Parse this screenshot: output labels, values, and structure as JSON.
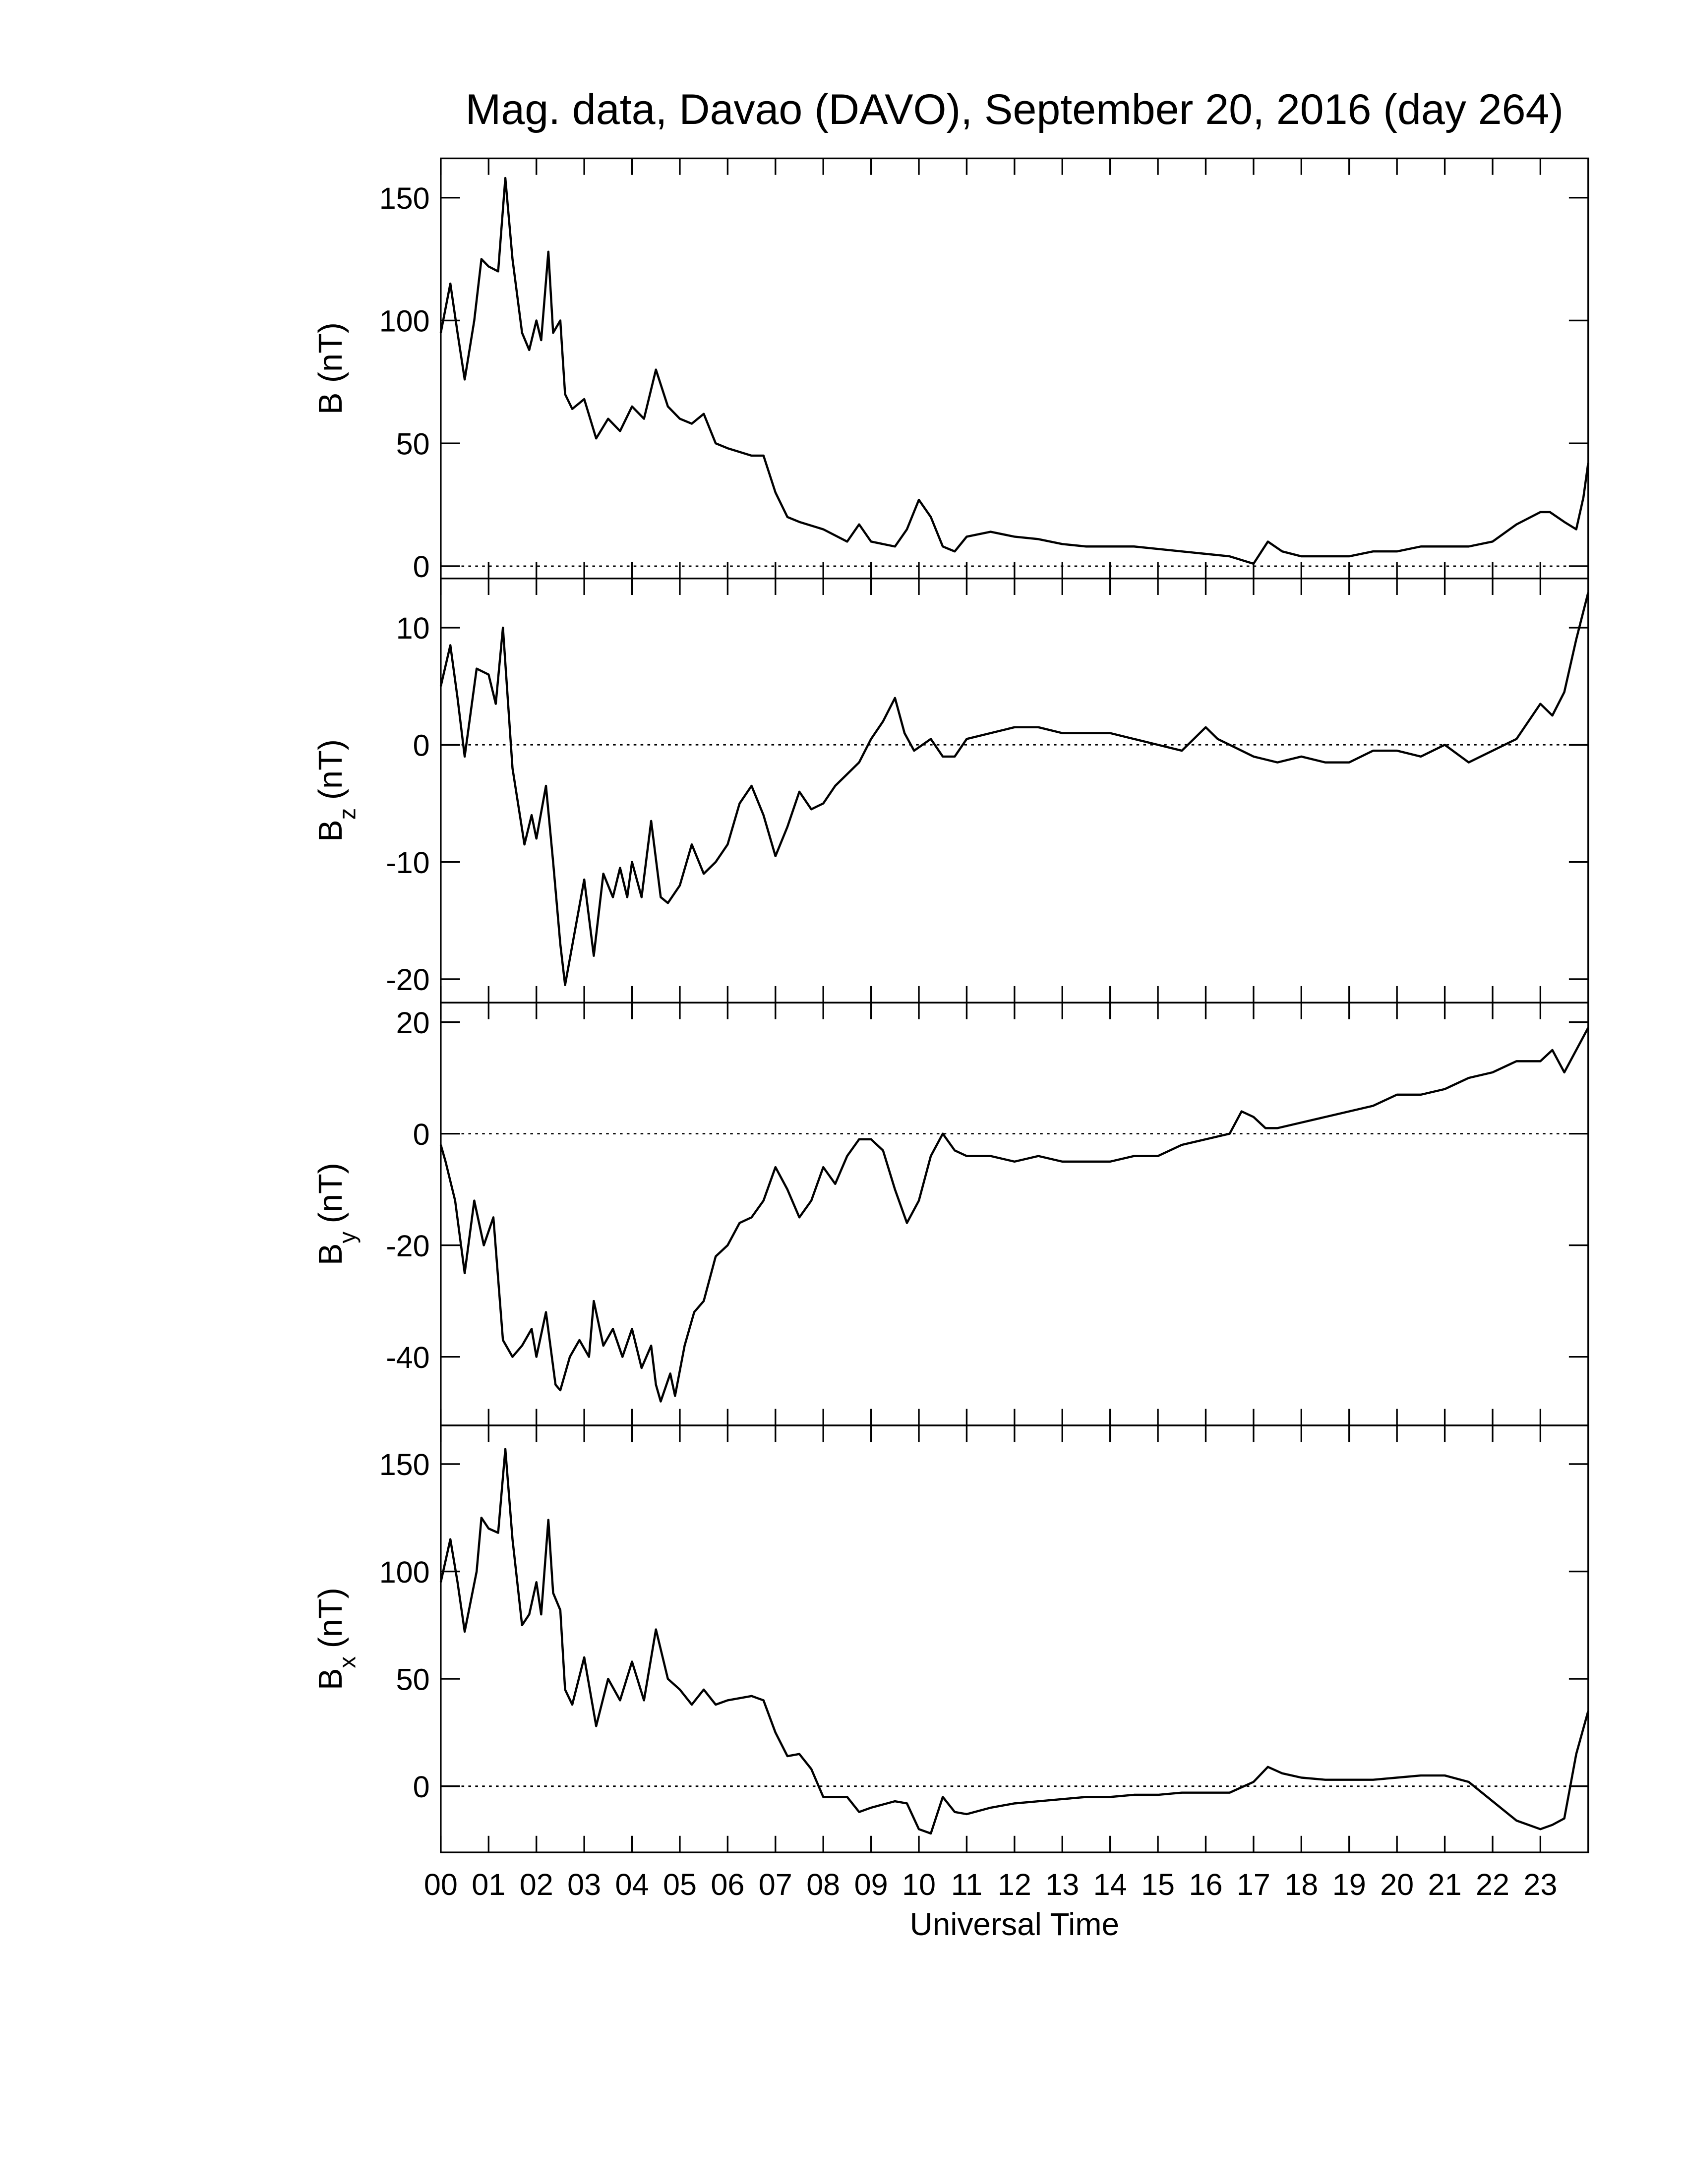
{
  "chart_data": [
    {
      "type": "line",
      "title": "Mag. data, Davao (DAVO), September 20, 2016 (day 264)",
      "ylabel": {
        "symbol": "B",
        "unit": "(nT)"
      },
      "xlim": [
        0,
        24
      ],
      "xticks": [
        0,
        1,
        2,
        3,
        4,
        5,
        6,
        7,
        8,
        9,
        10,
        11,
        12,
        13,
        14,
        15,
        16,
        17,
        18,
        19,
        20,
        21,
        22,
        23
      ],
      "ylim": [
        -5,
        166
      ],
      "yticks": [
        0,
        50,
        100,
        150
      ],
      "hline": 0,
      "color": "#000000",
      "x": [
        0,
        0.1,
        0.2,
        0.35,
        0.5,
        0.7,
        0.85,
        1,
        1.2,
        1.35,
        1.5,
        1.7,
        1.85,
        2,
        2.1,
        2.25,
        2.35,
        2.5,
        2.6,
        2.75,
        3,
        3.25,
        3.5,
        3.75,
        4,
        4.25,
        4.5,
        4.75,
        5,
        5.25,
        5.5,
        5.75,
        6,
        6.5,
        6.75,
        7,
        7.25,
        7.5,
        8,
        8.5,
        8.75,
        9,
        9.5,
        9.75,
        10,
        10.25,
        10.5,
        10.75,
        11,
        11.5,
        12,
        12.5,
        13,
        13.5,
        14,
        14.5,
        15,
        15.5,
        16,
        16.5,
        17,
        17.3,
        17.6,
        18,
        18.5,
        19,
        19.5,
        20,
        20.5,
        21,
        21.5,
        22,
        22.5,
        23,
        23.2,
        23.5,
        23.75,
        23.9,
        24
      ],
      "values": [
        95,
        105,
        115,
        95,
        76,
        100,
        125,
        122,
        120,
        158,
        125,
        95,
        88,
        100,
        92,
        128,
        95,
        100,
        70,
        64,
        68,
        52,
        60,
        55,
        65,
        60,
        80,
        65,
        60,
        58,
        62,
        50,
        48,
        45,
        45,
        30,
        20,
        18,
        15,
        10,
        17,
        10,
        8,
        15,
        27,
        20,
        8,
        6,
        12,
        14,
        12,
        11,
        9,
        8,
        8,
        8,
        7,
        6,
        5,
        4,
        1,
        10,
        6,
        4,
        4,
        4,
        6,
        6,
        8,
        8,
        8,
        10,
        17,
        22,
        22,
        18,
        15,
        28,
        42
      ]
    },
    {
      "type": "line",
      "ylabel": {
        "symbol": "B",
        "sub": "z",
        "unit": "(nT)"
      },
      "xlim": [
        0,
        24
      ],
      "xticks": [
        0,
        1,
        2,
        3,
        4,
        5,
        6,
        7,
        8,
        9,
        10,
        11,
        12,
        13,
        14,
        15,
        16,
        17,
        18,
        19,
        20,
        21,
        22,
        23
      ],
      "ylim": [
        -22,
        14.2
      ],
      "yticks": [
        -20,
        -10,
        0,
        10
      ],
      "hline": 0,
      "color": "#000000",
      "x": [
        0,
        0.2,
        0.35,
        0.5,
        0.75,
        1,
        1.15,
        1.3,
        1.5,
        1.75,
        1.9,
        2,
        2.2,
        2.35,
        2.5,
        2.6,
        2.8,
        3,
        3.2,
        3.4,
        3.6,
        3.75,
        3.9,
        4,
        4.2,
        4.4,
        4.6,
        4.75,
        5,
        5.25,
        5.5,
        5.75,
        6,
        6.25,
        6.5,
        6.75,
        7,
        7.25,
        7.5,
        7.75,
        8,
        8.25,
        8.5,
        8.75,
        9,
        9.25,
        9.5,
        9.7,
        9.9,
        10.25,
        10.5,
        10.75,
        11,
        11.5,
        12,
        12.5,
        13,
        13.5,
        14,
        14.5,
        15,
        15.5,
        15.75,
        16,
        16.25,
        16.5,
        17,
        17.5,
        18,
        18.5,
        19,
        19.5,
        20,
        20.5,
        21,
        21.5,
        22,
        22.5,
        23,
        23.25,
        23.5,
        23.75,
        24
      ],
      "values": [
        5,
        8.5,
        4,
        -1,
        6.5,
        6,
        3.5,
        10,
        -2,
        -8.5,
        -6,
        -8,
        -3.5,
        -10,
        -17,
        -20.5,
        -16,
        -11.5,
        -18,
        -11,
        -13,
        -10.5,
        -13,
        -10,
        -13,
        -6.5,
        -13,
        -13.5,
        -12,
        -8.5,
        -11,
        -10,
        -8.5,
        -5,
        -3.5,
        -6,
        -9.5,
        -7,
        -4,
        -5.5,
        -5,
        -3.5,
        -2.5,
        -1.5,
        0.5,
        2,
        4,
        1,
        -0.5,
        0.5,
        -1,
        -1,
        0.5,
        1,
        1.5,
        1.5,
        1,
        1,
        1,
        0.5,
        0,
        -0.5,
        0.5,
        1.5,
        0.5,
        0,
        -1,
        -1.5,
        -1,
        -1.5,
        -1.5,
        -0.5,
        -0.5,
        -1,
        0,
        -1.5,
        -0.5,
        0.5,
        3.5,
        2.5,
        4.5,
        9,
        13
      ]
    },
    {
      "type": "line",
      "ylabel": {
        "symbol": "B",
        "sub": "y",
        "unit": "(nT)"
      },
      "xlim": [
        0,
        24
      ],
      "xticks": [
        0,
        1,
        2,
        3,
        4,
        5,
        6,
        7,
        8,
        9,
        10,
        11,
        12,
        13,
        14,
        15,
        16,
        17,
        18,
        19,
        20,
        21,
        22,
        23
      ],
      "ylim": [
        -52.3,
        23.5
      ],
      "yticks": [
        -40,
        -20,
        0,
        20
      ],
      "hline": 0,
      "color": "#000000",
      "x": [
        0,
        0.1,
        0.3,
        0.5,
        0.7,
        0.9,
        1.1,
        1.3,
        1.5,
        1.7,
        1.9,
        2,
        2.2,
        2.4,
        2.5,
        2.7,
        2.9,
        3.1,
        3.2,
        3.4,
        3.6,
        3.8,
        4,
        4.2,
        4.4,
        4.5,
        4.6,
        4.8,
        4.9,
        5.1,
        5.3,
        5.5,
        5.75,
        6,
        6.25,
        6.5,
        6.75,
        7,
        7.25,
        7.5,
        7.75,
        8,
        8.25,
        8.5,
        8.75,
        9,
        9.25,
        9.5,
        9.75,
        10,
        10.25,
        10.5,
        10.75,
        11,
        11.5,
        12,
        12.5,
        13,
        13.5,
        14,
        14.5,
        15,
        15.5,
        16,
        16.5,
        16.75,
        17,
        17.25,
        17.5,
        18,
        18.5,
        19,
        19.5,
        20,
        20.5,
        21,
        21.5,
        22,
        22.5,
        23,
        23.25,
        23.5,
        23.75,
        24
      ],
      "values": [
        -2,
        -5,
        -12,
        -25,
        -12,
        -20,
        -15,
        -37,
        -40,
        -38,
        -35,
        -40,
        -32,
        -45,
        -46,
        -40,
        -37,
        -40,
        -30,
        -38,
        -35,
        -40,
        -35,
        -42,
        -38,
        -45,
        -48,
        -43,
        -47,
        -38,
        -32,
        -30,
        -22,
        -20,
        -16,
        -15,
        -12,
        -6,
        -10,
        -15,
        -12,
        -6,
        -9,
        -4,
        -1,
        -1,
        -3,
        -10,
        -16,
        -12,
        -4,
        0,
        -3,
        -4,
        -4,
        -5,
        -4,
        -5,
        -5,
        -5,
        -4,
        -4,
        -2,
        -1,
        0,
        4,
        3,
        1,
        1,
        2,
        3,
        4,
        5,
        7,
        7,
        8,
        10,
        11,
        13,
        13,
        15,
        11,
        15,
        19
      ]
    },
    {
      "type": "line",
      "ylabel": {
        "symbol": "B",
        "sub": "x",
        "unit": "(nT)"
      },
      "xlabel": "Universal Time",
      "xlim": [
        0,
        24
      ],
      "xticks": [
        {
          "value": 0,
          "label": "00"
        },
        {
          "value": 1,
          "label": "01"
        },
        {
          "value": 2,
          "label": "02"
        },
        {
          "value": 3,
          "label": "03"
        },
        {
          "value": 4,
          "label": "04"
        },
        {
          "value": 5,
          "label": "05"
        },
        {
          "value": 6,
          "label": "06"
        },
        {
          "value": 7,
          "label": "07"
        },
        {
          "value": 8,
          "label": "08"
        },
        {
          "value": 9,
          "label": "09"
        },
        10,
        11,
        12,
        13,
        14,
        15,
        16,
        17,
        18,
        19,
        20,
        21,
        22,
        23
      ],
      "ylim": [
        -30.8,
        168
      ],
      "yticks": [
        0,
        50,
        100,
        150
      ],
      "hline": 0,
      "color": "#000000",
      "x": [
        0,
        0.2,
        0.35,
        0.5,
        0.75,
        0.85,
        1,
        1.2,
        1.35,
        1.5,
        1.7,
        1.85,
        2,
        2.1,
        2.25,
        2.35,
        2.5,
        2.6,
        2.75,
        3,
        3.25,
        3.5,
        3.75,
        4,
        4.25,
        4.5,
        4.75,
        5,
        5.25,
        5.5,
        5.75,
        6,
        6.5,
        6.75,
        7,
        7.25,
        7.5,
        7.75,
        8,
        8.5,
        8.75,
        9,
        9.5,
        9.75,
        10,
        10.25,
        10.5,
        10.75,
        11,
        11.5,
        12,
        12.5,
        13,
        13.5,
        14,
        14.5,
        15,
        15.5,
        16,
        16.5,
        17,
        17.3,
        17.6,
        18,
        18.5,
        19,
        19.5,
        20,
        20.5,
        21,
        21.5,
        22,
        22.5,
        23,
        23.25,
        23.5,
        23.75,
        24
      ],
      "values": [
        95,
        115,
        95,
        72,
        100,
        125,
        120,
        118,
        157,
        115,
        75,
        80,
        95,
        80,
        124,
        90,
        82,
        45,
        38,
        60,
        28,
        50,
        40,
        58,
        40,
        73,
        50,
        45,
        38,
        45,
        38,
        40,
        42,
        40,
        25,
        14,
        15,
        8,
        -5,
        -5,
        -12,
        -10,
        -7,
        -8,
        -20,
        -22,
        -5,
        -12,
        -13,
        -10,
        -8,
        -7,
        -6,
        -5,
        -5,
        -4,
        -4,
        -3,
        -3,
        -3,
        2,
        9,
        6,
        4,
        3,
        3,
        3,
        4,
        5,
        5,
        2,
        -7,
        -16,
        -20,
        -18,
        -15,
        15,
        35
      ]
    }
  ]
}
